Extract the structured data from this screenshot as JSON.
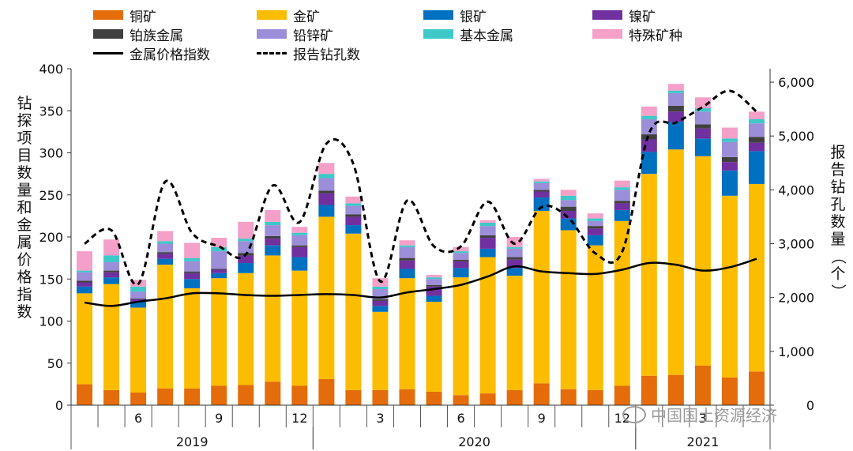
{
  "legend": {
    "copper": "铜矿",
    "gold": "金矿",
    "silver": "银矿",
    "nickel": "镍矿",
    "pgm": "铂族金属",
    "leadzinc": "铅锌矿",
    "base": "基本金属",
    "special": "特殊矿种",
    "price_index": "金属价格指数",
    "drill_holes": "报告钻孔数"
  },
  "colors": {
    "copper": "#e46c0a",
    "gold": "#fcbc00",
    "silver": "#0070c0",
    "nickel": "#7030a0",
    "pgm": "#404040",
    "leadzinc": "#9c8ed8",
    "base": "#3ec8c8",
    "special": "#f4a0c8"
  },
  "watermark": "中国国土资源经济",
  "chart_data": {
    "type": "bar",
    "stacked": true,
    "ylabel_left": "钻探项目数量和金属价格指数",
    "ylabel_right": "报告钻孔数量（个）",
    "ylim_left": [
      0,
      400
    ],
    "ylim_right": [
      0,
      6250
    ],
    "yticks_left": [
      "0",
      "50",
      "100",
      "150",
      "200",
      "250",
      "300",
      "350",
      "400"
    ],
    "yticks_right": [
      "0",
      "1,000",
      "2,000",
      "3,000",
      "4,000",
      "5,000",
      "6,000"
    ],
    "month_labels": [
      "",
      "",
      "6",
      "",
      "",
      "9",
      "",
      "",
      "12",
      "",
      "",
      "3",
      "",
      "",
      "6",
      "",
      "",
      "9",
      "",
      "",
      "12",
      "",
      "",
      "3",
      "",
      ""
    ],
    "years": [
      {
        "label": "2019",
        "start": 0,
        "count": 9
      },
      {
        "label": "2020",
        "start": 9,
        "count": 12
      },
      {
        "label": "2021",
        "start": 21,
        "count": 5
      }
    ],
    "series": [
      {
        "key": "copper",
        "name": "铜矿",
        "values": [
          25,
          18,
          15,
          20,
          20,
          23,
          24,
          28,
          23,
          31,
          18,
          18,
          19,
          16,
          12,
          14,
          18,
          26,
          19,
          18,
          23,
          35,
          36,
          47,
          33,
          40
        ]
      },
      {
        "key": "gold",
        "name": "金矿",
        "values": [
          108,
          126,
          101,
          147,
          119,
          128,
          133,
          150,
          137,
          193,
          186,
          93,
          132,
          107,
          140,
          162,
          136,
          205,
          189,
          172,
          196,
          240,
          268,
          249,
          216,
          223
        ]
      },
      {
        "key": "silver",
        "name": "银矿",
        "values": [
          8,
          8,
          7,
          7,
          11,
          6,
          12,
          12,
          16,
          14,
          10,
          7,
          11,
          7,
          11,
          10,
          9,
          16,
          14,
          12,
          13,
          26,
          33,
          21,
          30,
          39
        ]
      },
      {
        "key": "nickel",
        "name": "镍矿",
        "values": [
          5,
          6,
          3,
          6,
          7,
          4,
          9,
          8,
          12,
          14,
          10,
          6,
          10,
          11,
          8,
          13,
          10,
          7,
          9,
          8,
          8,
          15,
          12,
          12,
          10,
          10
        ]
      },
      {
        "key": "pgm",
        "name": "铂族金属",
        "values": [
          2,
          2,
          1,
          2,
          2,
          1,
          3,
          3,
          2,
          3,
          3,
          2,
          3,
          2,
          2,
          3,
          3,
          2,
          5,
          3,
          3,
          6,
          7,
          5,
          6,
          7
        ]
      },
      {
        "key": "leadzinc",
        "name": "铅锌矿",
        "values": [
          10,
          10,
          8,
          10,
          12,
          21,
          14,
          13,
          12,
          15,
          10,
          12,
          13,
          7,
          8,
          11,
          10,
          8,
          8,
          6,
          13,
          18,
          15,
          15,
          18,
          16
        ]
      },
      {
        "key": "base",
        "name": "基本金属",
        "values": [
          2,
          8,
          6,
          3,
          4,
          5,
          3,
          4,
          3,
          5,
          3,
          3,
          2,
          2,
          2,
          4,
          2,
          2,
          5,
          3,
          3,
          4,
          3,
          4,
          4,
          5
        ]
      },
      {
        "key": "special",
        "name": "特殊矿种",
        "values": [
          23,
          19,
          8,
          12,
          18,
          11,
          20,
          14,
          7,
          13,
          8,
          10,
          6,
          3,
          5,
          3,
          12,
          3,
          7,
          6,
          8,
          11,
          8,
          13,
          13,
          9
        ]
      }
    ],
    "price_index": [
      122,
      118,
      123,
      127,
      133,
      133,
      131,
      130,
      131,
      132,
      131,
      128,
      134,
      138,
      143,
      153,
      165,
      159,
      157,
      156,
      161,
      169,
      167,
      160,
      164,
      174
    ],
    "drill_holes": [
      3000,
      3250,
      2250,
      4150,
      3200,
      2950,
      2800,
      4080,
      3400,
      4860,
      4480,
      2300,
      3800,
      2950,
      2950,
      3780,
      3000,
      3680,
      3480,
      2820,
      2850,
      5050,
      5250,
      5540,
      5840,
      5450
    ]
  }
}
